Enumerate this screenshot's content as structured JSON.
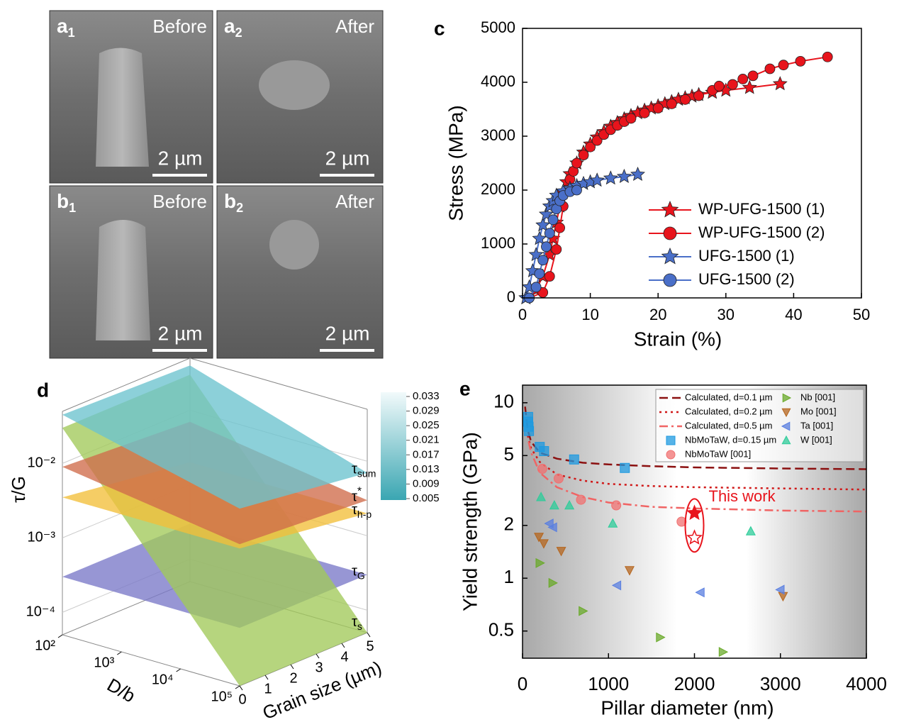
{
  "images": [
    {
      "label": "a",
      "sub": "1",
      "caption": "Before",
      "scale_bar": "2 µm"
    },
    {
      "label": "a",
      "sub": "2",
      "caption": "After",
      "scale_bar": "2 µm"
    },
    {
      "label": "b",
      "sub": "1",
      "caption": "Before",
      "scale_bar": "2 µm"
    },
    {
      "label": "b",
      "sub": "2",
      "caption": "After",
      "scale_bar": "2 µm"
    }
  ],
  "chart_data": [
    {
      "panel": "c",
      "type": "line",
      "xlabel": "Strain (%)",
      "ylabel": "Stress (MPa)",
      "xlim": [
        0,
        50
      ],
      "ylim": [
        0,
        5000
      ],
      "xticks": [
        0,
        10,
        20,
        30,
        40,
        50
      ],
      "yticks": [
        0,
        1000,
        2000,
        3000,
        4000,
        5000
      ],
      "legend": "lower right",
      "series": [
        {
          "name": "WP-UFG-1500 (1)",
          "color": "#e8141c",
          "marker": "star",
          "x": [
            0.5,
            2,
            3,
            4,
            4.5,
            5,
            5.5,
            6,
            6.5,
            7,
            8,
            9,
            10,
            11,
            12,
            13,
            14,
            15,
            16,
            17,
            18,
            19,
            20,
            21,
            22,
            23,
            24,
            25,
            26,
            28,
            30,
            33.5,
            38
          ],
          "values": [
            0,
            150,
            400,
            800,
            1100,
            1400,
            1700,
            1950,
            2150,
            2300,
            2500,
            2700,
            2850,
            2980,
            3080,
            3180,
            3250,
            3320,
            3380,
            3430,
            3480,
            3520,
            3560,
            3600,
            3640,
            3680,
            3710,
            3740,
            3770,
            3810,
            3850,
            3900,
            3970
          ]
        },
        {
          "name": "WP-UFG-1500 (2)",
          "color": "#e8141c",
          "marker": "circle",
          "x": [
            1,
            3,
            4,
            5,
            5.5,
            6,
            6.5,
            7,
            7.5,
            8,
            9,
            10,
            11,
            12,
            13,
            14,
            15,
            16,
            18,
            20,
            22,
            24,
            26,
            28,
            29,
            31,
            32.5,
            34,
            36.5,
            38.5,
            41,
            45
          ],
          "values": [
            0,
            100,
            400,
            900,
            1300,
            1700,
            2000,
            2200,
            2350,
            2500,
            2650,
            2800,
            2920,
            3030,
            3120,
            3200,
            3270,
            3330,
            3430,
            3520,
            3600,
            3680,
            3750,
            3850,
            3930,
            3960,
            4060,
            4120,
            4250,
            4320,
            4390,
            4470
          ]
        },
        {
          "name": "UFG-1500 (1)",
          "color": "#4a6fc8",
          "marker": "star",
          "x": [
            0.5,
            1,
            1.5,
            2,
            2.5,
            3,
            3.5,
            4,
            4.5,
            5,
            6,
            7,
            8,
            9,
            10,
            11,
            13,
            15,
            17
          ],
          "values": [
            0,
            200,
            500,
            800,
            1100,
            1350,
            1550,
            1700,
            1800,
            1900,
            1980,
            2030,
            2080,
            2120,
            2150,
            2180,
            2220,
            2250,
            2290
          ]
        },
        {
          "name": "UFG-1500 (2)",
          "color": "#4a6fc8",
          "marker": "circle",
          "x": [
            1,
            2,
            2.5,
            3,
            3.5,
            4,
            4.5,
            5,
            5.5,
            6,
            7,
            8
          ],
          "values": [
            0,
            200,
            450,
            700,
            950,
            1200,
            1450,
            1650,
            1800,
            1900,
            1970,
            2000
          ]
        }
      ]
    },
    {
      "panel": "d",
      "type": "surface3d",
      "xlabel": "D/b",
      "ylabel": "Grain size (µm)",
      "zlabel": "τ/G",
      "xscale": "log",
      "xlim": [
        100,
        100000
      ],
      "xticks": [
        {
          "value": 100,
          "label": "10²"
        },
        {
          "value": 1000,
          "label": "10³"
        },
        {
          "value": 10000,
          "label": "10⁴"
        },
        {
          "value": 100000,
          "label": "10⁵"
        }
      ],
      "ylim": [
        0,
        5
      ],
      "yticks": [
        0,
        1,
        2,
        3,
        4,
        5
      ],
      "zscale": "log",
      "zlim": [
        5e-05,
        0.05
      ],
      "zticks": [
        {
          "value": 0.0001,
          "label": "10⁻⁴"
        },
        {
          "value": 0.001,
          "label": "10⁻³"
        },
        {
          "value": 0.01,
          "label": "10⁻²"
        }
      ],
      "colorbar": {
        "ticks": [
          0.033,
          0.029,
          0.025,
          0.021,
          0.017,
          0.013,
          0.009,
          0.005
        ],
        "colors": [
          "#3aa6b2",
          "#f2fafb"
        ]
      },
      "surfaces": [
        {
          "name": "τ",
          "sub": "G",
          "color": "#7a78c8",
          "x": [
            100,
            100000
          ],
          "y": [
            0,
            5
          ],
          "values": [
            [
              0.0003,
              0.0003
            ],
            [
              0.0003,
              0.0003
            ]
          ]
        },
        {
          "name": "τ",
          "sub": "s",
          "color": "#a2c95a",
          "x": [
            100,
            100000
          ],
          "y": [
            0,
            5
          ],
          "values": [
            [
              0.03,
              0.03
            ],
            [
              5e-05,
              5e-05
            ]
          ]
        },
        {
          "name": "τ",
          "sub": "h-p",
          "color": "#f2bf3a",
          "x": [
            100,
            100000
          ],
          "y": [
            0,
            5
          ],
          "values": [
            [
              0.0035,
              0.002
            ],
            [
              0.0035,
              0.002
            ]
          ]
        },
        {
          "name": "τ",
          "sup": "*",
          "color": "#cf6b4a",
          "x": [
            100,
            100000
          ],
          "y": [
            0,
            5
          ],
          "values": [
            [
              0.009,
              0.007
            ],
            [
              0.004,
              0.003
            ]
          ]
        },
        {
          "name": "τ",
          "sub": "sum",
          "color": "#6cc3ce",
          "x": [
            100,
            100000
          ],
          "y": [
            0,
            5
          ],
          "values": [
            [
              0.045,
              0.04
            ],
            [
              0.012,
              0.007
            ]
          ]
        }
      ]
    },
    {
      "panel": "e",
      "type": "scatter",
      "xlabel": "Pillar diameter (nm)",
      "ylabel": "Yield strength (GPa)",
      "xlim": [
        0,
        4000
      ],
      "xticks": [
        0,
        1000,
        2000,
        3000,
        4000
      ],
      "ylog": true,
      "ylim": [
        0.35,
        12.6
      ],
      "yticks": [
        0.5,
        1,
        2,
        5,
        10
      ],
      "series": [
        {
          "name": "Calculated, d=0.1 µm",
          "color": "#8b1010",
          "style": "dashed",
          "x": [
            30,
            60,
            100,
            200,
            400,
            700,
            1000,
            1500,
            2000,
            3000,
            4000
          ],
          "values": [
            9.5,
            7,
            6,
            5.2,
            4.8,
            4.55,
            4.45,
            4.35,
            4.28,
            4.22,
            4.18
          ]
        },
        {
          "name": "Calculated, d=0.2 µm",
          "color": "#d01818",
          "style": "dotted",
          "x": [
            60,
            100,
            200,
            400,
            700,
            1000,
            1500,
            2000,
            3000,
            4000
          ],
          "values": [
            6.5,
            5.5,
            4.6,
            3.9,
            3.6,
            3.45,
            3.35,
            3.3,
            3.25,
            3.2
          ]
        },
        {
          "name": "Calculated, d=0.5 µm",
          "color": "#f06464",
          "style": "dashdot",
          "x": [
            70,
            100,
            200,
            400,
            700,
            1000,
            1500,
            2000,
            3000,
            4000
          ],
          "values": [
            6,
            5.2,
            4,
            3.3,
            2.9,
            2.7,
            2.55,
            2.5,
            2.43,
            2.4
          ]
        },
        {
          "name": "NbMoTaW, d=0.15 µm",
          "color": "#1e9ae0",
          "marker": "square",
          "x": [
            65,
            65,
            70,
            75,
            200,
            250,
            600,
            1190
          ],
          "values": [
            8.3,
            7.8,
            7.3,
            6.9,
            5.6,
            5.3,
            4.75,
            4.25
          ]
        },
        {
          "name": "NbMoTaW [001]",
          "color": "#f07070",
          "marker": "circle",
          "x": [
            230,
            420,
            680,
            1090,
            1850
          ],
          "values": [
            4.2,
            3.7,
            2.8,
            2.6,
            2.1
          ]
        },
        {
          "name": "Nb [001]",
          "color": "#6aaa2a",
          "marker": "tri-right",
          "x": [
            200,
            350,
            700,
            1600,
            2330
          ],
          "values": [
            1.22,
            0.94,
            0.65,
            0.46,
            0.38
          ]
        },
        {
          "name": "Mo [001]",
          "color": "#b5651d",
          "marker": "tri-down",
          "x": [
            190,
            247,
            450,
            1245,
            3030
          ],
          "values": [
            1.72,
            1.58,
            1.43,
            1.11,
            0.79
          ]
        },
        {
          "name": "Ta [001]",
          "color": "#5a7fe0",
          "marker": "tri-left",
          "x": [
            313,
            355,
            1100,
            2070,
            3000
          ],
          "values": [
            2.05,
            1.95,
            0.91,
            0.83,
            0.86
          ]
        },
        {
          "name": "W [001]",
          "color": "#2ecc9a",
          "marker": "tri-up",
          "x": [
            215,
            370,
            545,
            1050,
            2655
          ],
          "values": [
            2.9,
            2.6,
            2.6,
            2.05,
            1.85
          ]
        }
      ],
      "annotations": [
        {
          "text": "This work",
          "color": "#e8141c",
          "x": [
            2000,
            2000
          ],
          "values": [
            2.35,
            1.7
          ],
          "filled": [
            true,
            false
          ]
        }
      ]
    }
  ]
}
